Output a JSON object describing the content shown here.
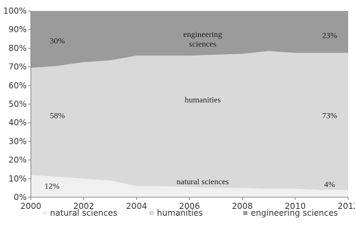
{
  "chart_data": {
    "type": "area",
    "stacked": true,
    "x": [
      2000,
      2001,
      2002,
      2003,
      2004,
      2005,
      2006,
      2007,
      2008,
      2009,
      2010,
      2011,
      2012
    ],
    "series": [
      {
        "name": "natural sciences",
        "values": [
          12,
          11,
          10,
          9,
          6,
          6,
          5.5,
          5,
          5,
          4.5,
          4.5,
          4,
          4
        ]
      },
      {
        "name": "humanities",
        "values": [
          57.5,
          59.5,
          62.5,
          64.5,
          70,
          70,
          70.5,
          71.5,
          72,
          74,
          73,
          73.5,
          73.5
        ]
      },
      {
        "name": "engineering sciences",
        "values": [
          30.5,
          29.5,
          27.5,
          26.5,
          24,
          24,
          24,
          23.5,
          23,
          21.5,
          22.5,
          22.5,
          22.5
        ]
      }
    ],
    "colors": [
      "#f0f0f0",
      "#d9d9d9",
      "#9b9b9b"
    ],
    "ylim": [
      0,
      100
    ],
    "yticks": [
      "0%",
      "10%",
      "20%",
      "30%",
      "40%",
      "50%",
      "60%",
      "70%",
      "80%",
      "90%",
      "100%"
    ],
    "xticks": [
      "2000",
      "2002",
      "2004",
      "2006",
      "2008",
      "2010",
      "2012"
    ],
    "legend_position": "bottom",
    "grid": false,
    "area_labels": [
      {
        "text": "engineering sciences",
        "lines": [
          "engineering",
          "sciences"
        ],
        "x": 2006.5,
        "y": 86
      },
      {
        "text": "humanities",
        "lines": [
          "humanities"
        ],
        "x": 2006.5,
        "y": 51
      },
      {
        "text": "natural sciences",
        "lines": [
          "natural sciences"
        ],
        "x": 2006.5,
        "y": 7
      }
    ],
    "annotations": [
      {
        "text": "30%",
        "x": 2001,
        "y": 84
      },
      {
        "text": "23%",
        "x": 2011.3,
        "y": 87
      },
      {
        "text": "58%",
        "x": 2001,
        "y": 44
      },
      {
        "text": "73%",
        "x": 2011.3,
        "y": 44
      },
      {
        "text": "12%",
        "x": 2000.8,
        "y": 6
      },
      {
        "text": "4%",
        "x": 2011.3,
        "y": 7
      }
    ]
  }
}
